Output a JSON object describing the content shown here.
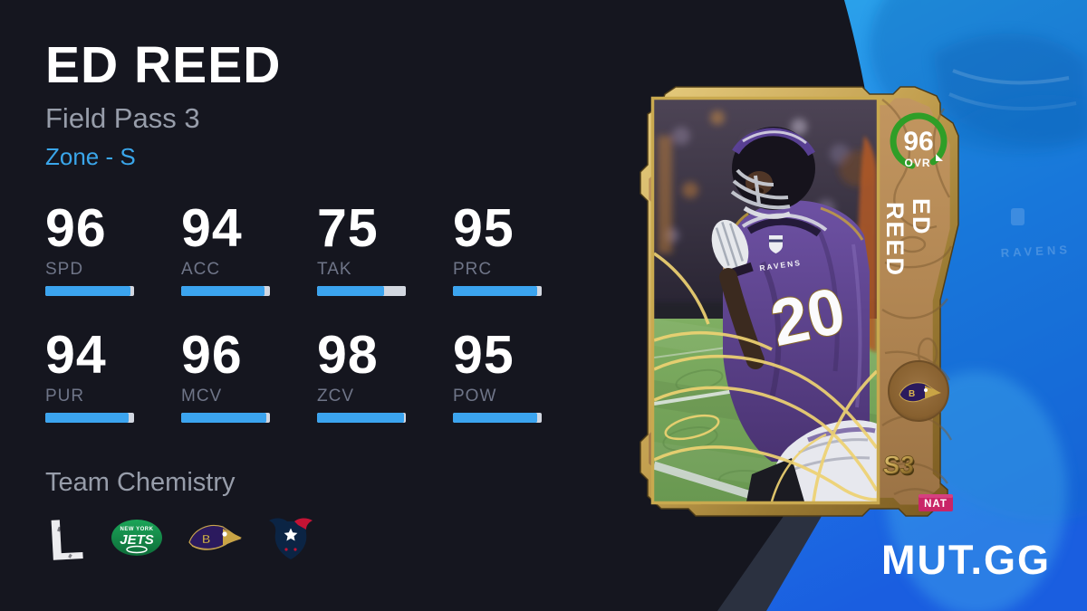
{
  "header": {
    "title": "ED REED",
    "program": "Field Pass 3",
    "archetype": "Zone - S"
  },
  "stats": [
    {
      "label": "SPD",
      "value": 96
    },
    {
      "label": "ACC",
      "value": 94
    },
    {
      "label": "TAK",
      "value": 75
    },
    {
      "label": "PRC",
      "value": 95
    },
    {
      "label": "PUR",
      "value": 94
    },
    {
      "label": "MCV",
      "value": 96
    },
    {
      "label": "ZCV",
      "value": 98
    },
    {
      "label": "POW",
      "value": 95
    }
  ],
  "team_chemistry": {
    "title": "Team Chemistry",
    "legends_letter": "L",
    "jets_top": "NEW YORK",
    "jets_word": "JETS",
    "ravens_letter": "B",
    "teams": [
      "Legends",
      "New York Jets",
      "Baltimore Ravens",
      "Houston Texans"
    ]
  },
  "card": {
    "overall": "96",
    "ovr_label": "OVR",
    "name_line1": "ED",
    "name_line2": "REED",
    "jersey_number": "20",
    "jersey_wordmark": "RAVENS",
    "season": "S3",
    "nat": "NAT"
  },
  "branding": {
    "site": "MUT.GG"
  },
  "colors": {
    "accent_blue": "#3ba4ef",
    "bg_dark": "#15161f",
    "panel_blue_top": "#2ca6eb",
    "panel_blue_bottom": "#1a5ee0",
    "ovr_green": "#2f9e27",
    "nat_pink": "#c92567",
    "gold": "#c9a84c"
  }
}
